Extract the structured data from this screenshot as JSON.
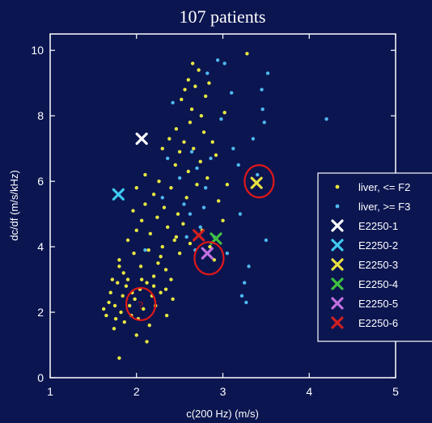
{
  "chart_data": {
    "type": "scatter",
    "title": "107 patients",
    "xlabel": "c(200 Hz) (m/s)",
    "ylabel": "dc/df (m/s/kHz)",
    "xlim": [
      1,
      5
    ],
    "ylim": [
      0,
      10.5
    ],
    "xticks": [
      "1",
      "2",
      "3",
      "4",
      "5"
    ],
    "yticks": [
      "0",
      "2",
      "4",
      "6",
      "8",
      "10"
    ],
    "grid": false,
    "legend_position": "right",
    "colors": {
      "background": "#0b1550",
      "axes": "#ffffff",
      "liver_f2": "#e8e840",
      "liver_f3": "#4fb8f0",
      "E2250-1": "#ffffff",
      "E2250-2": "#3ec8f0",
      "E2250-3": "#e8e040",
      "E2250-4": "#40c040",
      "E2250-5": "#c070e0",
      "E2250-6": "#d02020",
      "annotation": "#e01818"
    },
    "series": [
      {
        "name": "liver, <= F2",
        "marker": "dot",
        "points": [
          [
            1.62,
            2.1
          ],
          [
            1.65,
            1.9
          ],
          [
            1.68,
            2.3
          ],
          [
            1.7,
            2.6
          ],
          [
            1.72,
            3.0
          ],
          [
            1.75,
            2.2
          ],
          [
            1.76,
            1.8
          ],
          [
            1.78,
            2.9
          ],
          [
            1.8,
            3.4
          ],
          [
            1.8,
            3.6
          ],
          [
            1.82,
            2.0
          ],
          [
            1.84,
            2.5
          ],
          [
            1.85,
            3.2
          ],
          [
            1.86,
            1.7
          ],
          [
            1.88,
            2.8
          ],
          [
            1.9,
            4.2
          ],
          [
            1.9,
            3.0
          ],
          [
            1.92,
            2.2
          ],
          [
            1.94,
            1.9
          ],
          [
            1.95,
            2.6
          ],
          [
            1.96,
            5.1
          ],
          [
            1.97,
            3.8
          ],
          [
            1.98,
            2.4
          ],
          [
            2.0,
            4.5
          ],
          [
            2.0,
            5.8
          ],
          [
            2.02,
            1.8
          ],
          [
            2.04,
            2.7
          ],
          [
            2.05,
            3.4
          ],
          [
            2.06,
            4.8
          ],
          [
            2.08,
            2.1
          ],
          [
            2.1,
            5.3
          ],
          [
            2.1,
            6.2
          ],
          [
            2.12,
            2.9
          ],
          [
            2.14,
            3.9
          ],
          [
            2.15,
            1.6
          ],
          [
            2.16,
            4.4
          ],
          [
            2.18,
            2.5
          ],
          [
            2.2,
            5.6
          ],
          [
            2.2,
            3.1
          ],
          [
            2.22,
            2.2
          ],
          [
            2.24,
            4.9
          ],
          [
            2.25,
            3.5
          ],
          [
            2.26,
            6.0
          ],
          [
            2.28,
            2.6
          ],
          [
            2.3,
            4.0
          ],
          [
            2.3,
            7.0
          ],
          [
            2.32,
            5.2
          ],
          [
            2.34,
            3.3
          ],
          [
            2.35,
            1.9
          ],
          [
            2.36,
            4.6
          ],
          [
            2.38,
            7.3
          ],
          [
            2.4,
            5.8
          ],
          [
            2.4,
            3.0
          ],
          [
            2.42,
            2.4
          ],
          [
            2.44,
            4.2
          ],
          [
            2.45,
            6.5
          ],
          [
            2.46,
            7.6
          ],
          [
            2.48,
            5.0
          ],
          [
            2.5,
            6.9
          ],
          [
            2.5,
            3.8
          ],
          [
            2.52,
            8.5
          ],
          [
            2.54,
            4.7
          ],
          [
            2.55,
            7.2
          ],
          [
            2.56,
            8.8
          ],
          [
            2.58,
            5.5
          ],
          [
            2.6,
            9.1
          ],
          [
            2.6,
            6.3
          ],
          [
            2.62,
            7.8
          ],
          [
            2.64,
            8.2
          ],
          [
            2.65,
            9.6
          ],
          [
            2.66,
            7.0
          ],
          [
            2.68,
            8.9
          ],
          [
            2.7,
            5.9
          ],
          [
            2.72,
            9.4
          ],
          [
            2.74,
            6.6
          ],
          [
            2.75,
            8.0
          ],
          [
            2.76,
            4.5
          ],
          [
            2.78,
            7.5
          ],
          [
            2.8,
            8.6
          ],
          [
            2.82,
            6.1
          ],
          [
            2.84,
            9.0
          ],
          [
            2.85,
            4.0
          ],
          [
            2.88,
            7.2
          ],
          [
            2.9,
            3.6
          ],
          [
            2.92,
            6.8
          ],
          [
            2.95,
            5.4
          ],
          [
            3.0,
            4.8
          ],
          [
            3.02,
            8.1
          ],
          [
            3.05,
            5.9
          ],
          [
            3.28,
            9.9
          ],
          [
            1.8,
            0.6
          ],
          [
            2.12,
            1.1
          ],
          [
            2.0,
            1.3
          ],
          [
            1.74,
            1.5
          ],
          [
            2.28,
            3.7
          ],
          [
            2.06,
            3.0
          ],
          [
            2.62,
            4.1
          ],
          [
            2.46,
            4.3
          ],
          [
            2.2,
            2.8
          ],
          [
            2.34,
            2.7
          ]
        ]
      },
      {
        "name": "liver, >= F3",
        "marker": "dot",
        "points": [
          [
            2.1,
            3.9
          ],
          [
            2.3,
            5.5
          ],
          [
            2.36,
            6.7
          ],
          [
            2.42,
            8.4
          ],
          [
            2.5,
            6.1
          ],
          [
            2.55,
            5.3
          ],
          [
            2.58,
            4.3
          ],
          [
            2.62,
            5.0
          ],
          [
            2.68,
            3.9
          ],
          [
            2.7,
            6.4
          ],
          [
            2.74,
            4.6
          ],
          [
            2.8,
            5.8
          ],
          [
            2.82,
            9.3
          ],
          [
            2.86,
            6.7
          ],
          [
            2.9,
            4.3
          ],
          [
            2.94,
            9.7
          ],
          [
            2.98,
            7.9
          ],
          [
            3.02,
            9.6
          ],
          [
            3.05,
            3.8
          ],
          [
            3.1,
            8.7
          ],
          [
            3.12,
            7.0
          ],
          [
            3.18,
            6.5
          ],
          [
            3.2,
            5.0
          ],
          [
            3.22,
            2.5
          ],
          [
            3.25,
            2.9
          ],
          [
            3.27,
            2.3
          ],
          [
            3.3,
            3.4
          ],
          [
            3.35,
            7.3
          ],
          [
            3.4,
            6.2
          ],
          [
            3.45,
            8.8
          ],
          [
            3.46,
            8.2
          ],
          [
            3.48,
            7.8
          ],
          [
            3.52,
            9.3
          ],
          [
            3.5,
            4.2
          ],
          [
            4.2,
            7.9
          ],
          [
            2.78,
            5.2
          ],
          [
            2.64,
            6.9
          ]
        ]
      },
      {
        "name": "E2250-1",
        "marker": "x",
        "points": [
          [
            2.06,
            7.3
          ]
        ]
      },
      {
        "name": "E2250-2",
        "marker": "x",
        "points": [
          [
            1.79,
            5.6
          ]
        ]
      },
      {
        "name": "E2250-3",
        "marker": "x",
        "points": [
          [
            3.39,
            5.95
          ]
        ]
      },
      {
        "name": "E2250-4",
        "marker": "x",
        "points": [
          [
            2.92,
            4.25
          ]
        ]
      },
      {
        "name": "E2250-5",
        "marker": "x",
        "points": [
          [
            2.82,
            3.8
          ]
        ]
      },
      {
        "name": "E2250-6",
        "marker": "x",
        "points": [
          [
            2.72,
            4.35
          ]
        ]
      }
    ],
    "annotations": [
      {
        "type": "circle",
        "x": 3.42,
        "y": 6.0
      },
      {
        "type": "circle",
        "x": 2.84,
        "y": 3.65
      },
      {
        "type": "circle",
        "x": 2.05,
        "y": 2.25,
        "label": "?"
      }
    ]
  }
}
